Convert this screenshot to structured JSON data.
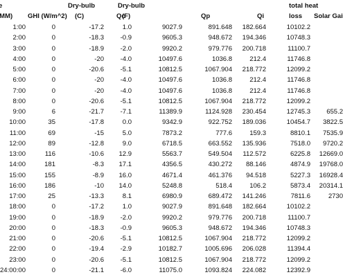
{
  "header": {
    "line1": [
      "e",
      "Dry-bulb",
      "Dry-bulb",
      "total heat"
    ],
    "line2": [
      ":MM)",
      "GHI (W/m^2)",
      "(C)",
      "(F)",
      "Qc",
      "Qp",
      "Qi",
      "loss",
      "Solar Gai"
    ]
  },
  "table": {
    "rows": [
      {
        "cells": [
          "1:00",
          "0",
          "-17.2",
          "1.0",
          "9027.9",
          "891.648",
          "182.664",
          "10102.2"
        ]
      },
      {
        "cells": [
          "2:00",
          "0",
          "-18.3",
          "-0.9",
          "9605.3",
          "948.672",
          "194.346",
          "10748.3"
        ]
      },
      {
        "cells": [
          "3:00",
          "0",
          "-18.9",
          "-2.0",
          "9920.2",
          "979.776",
          "200.718",
          "11100.7"
        ]
      },
      {
        "cells": [
          "4:00",
          "0",
          "-20",
          "-4.0",
          "10497.6",
          "1036.8",
          "212.4",
          "11746.8"
        ]
      },
      {
        "cells": [
          "5:00",
          "0",
          "-20.6",
          "-5.1",
          "10812.5",
          "1067.904",
          "218.772",
          "12099.2"
        ]
      },
      {
        "cells": [
          "6:00",
          "0",
          "-20",
          "-4.0",
          "10497.6",
          "1036.8",
          "212.4",
          "11746.8"
        ]
      },
      {
        "cells": [
          "7:00",
          "0",
          "-20",
          "-4.0",
          "10497.6",
          "1036.8",
          "212.4",
          "11746.8"
        ]
      },
      {
        "cells": [
          "8:00",
          "0",
          "-20.6",
          "-5.1",
          "10812.5",
          "1067.904",
          "218.772",
          "12099.2"
        ]
      },
      {
        "cells": [
          "9:00",
          "6",
          "-21.7",
          "-7.1",
          "11389.9",
          "1124.928",
          "230.454",
          "12745.3"
        ],
        "solar": "655.2"
      },
      {
        "cells": [
          "10:00",
          "35",
          "-17.8",
          "0.0",
          "9342.9",
          "922.752",
          "189.036",
          "10454.7"
        ],
        "solar": "3822.5"
      },
      {
        "cells": [
          "11:00",
          "69",
          "-15",
          "5.0",
          "7873.2",
          "777.6",
          "159.3",
          "8810.1"
        ],
        "solar": "7535.9"
      },
      {
        "cells": [
          "12:00",
          "89",
          "-12.8",
          "9.0",
          "6718.5",
          "663.552",
          "135.936",
          "7518.0"
        ],
        "solar": "9720.2"
      },
      {
        "cells": [
          "13:00",
          "116",
          "-10.6",
          "12.9",
          "5563.7",
          "549.504",
          "112.572",
          "6225.8"
        ],
        "solar": "12669.0"
      },
      {
        "cells": [
          "14:00",
          "181",
          "-8.3",
          "17.1",
          "4356.5",
          "430.272",
          "88.146",
          "4874.9"
        ],
        "solar": "19768.0"
      },
      {
        "cells": [
          "15:00",
          "155",
          "-8.9",
          "16.0",
          "4671.4",
          "461.376",
          "94.518",
          "5227.3"
        ],
        "solar": "16928.4"
      },
      {
        "cells": [
          "16:00",
          "186",
          "-10",
          "14.0",
          "5248.8",
          "518.4",
          "106.2",
          "5873.4"
        ],
        "solar": "20314.1"
      },
      {
        "cells": [
          "17:00",
          "25",
          "-13.3",
          "8.1",
          "6980.9",
          "689.472",
          "141.246",
          "7811.6"
        ],
        "solar": "2730"
      },
      {
        "cells": [
          "18:00",
          "0",
          "-17.2",
          "1.0",
          "9027.9",
          "891.648",
          "182.664",
          "10102.2"
        ]
      },
      {
        "cells": [
          "19:00",
          "0",
          "-18.9",
          "-2.0",
          "9920.2",
          "979.776",
          "200.718",
          "11100.7"
        ]
      },
      {
        "cells": [
          "20:00",
          "0",
          "-18.3",
          "-0.9",
          "9605.3",
          "948.672",
          "194.346",
          "10748.3"
        ]
      },
      {
        "cells": [
          "21:00",
          "0",
          "-20.6",
          "-5.1",
          "10812.5",
          "1067.904",
          "218.772",
          "12099.2"
        ]
      },
      {
        "cells": [
          "22:00",
          "0",
          "-19.4",
          "-2.9",
          "10182.7",
          "1005.696",
          "206.028",
          "11394.4"
        ]
      },
      {
        "cells": [
          "23:00",
          "0",
          "-20.6",
          "-5.1",
          "10812.5",
          "1067.904",
          "218.772",
          "12099.2"
        ]
      },
      {
        "cells": [
          "24:00:00",
          "0",
          "-21.1",
          "-6.0",
          "11075.0",
          "1093.824",
          "224.082",
          "12392.9"
        ]
      }
    ]
  }
}
